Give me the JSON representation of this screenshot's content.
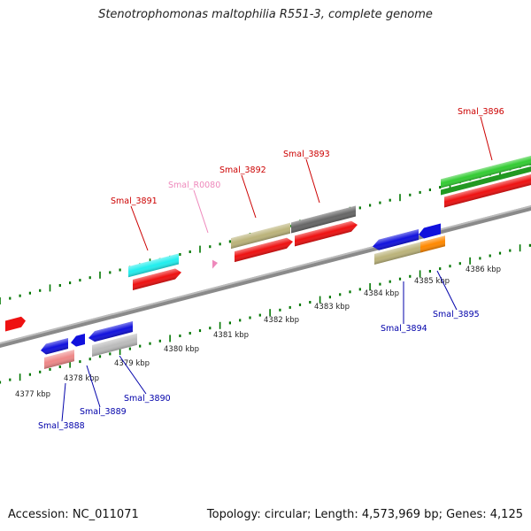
{
  "title": "Stenotrophomonas maltophilia R551-3, complete genome",
  "footer": {
    "accession": "Accession: NC_011071",
    "topology": "Topology: circular; Length: 4,573,969 bp; Genes: 4,125"
  },
  "kbp_ticks": [
    "4377 kbp",
    "4378 kbp",
    "4379 kbp",
    "4380 kbp",
    "4381 kbp",
    "4382 kbp",
    "4383 kbp",
    "4384 kbp",
    "4385 kbp",
    "4386 kbp"
  ],
  "gene_labels": {
    "forward": [
      "Smal_3891",
      "Smal_R0080",
      "Smal_3892",
      "Smal_3893",
      "Smal_3896"
    ],
    "reverse": [
      "Smal_3888",
      "Smal_3889",
      "Smal_3890",
      "Smal_3894",
      "Smal_3895"
    ]
  },
  "colors": {
    "forward_label": "#cc0000",
    "rna_label": "#ee88bb",
    "reverse_label": "#0000aa",
    "backbone": "#888888",
    "tick": "#007700"
  }
}
